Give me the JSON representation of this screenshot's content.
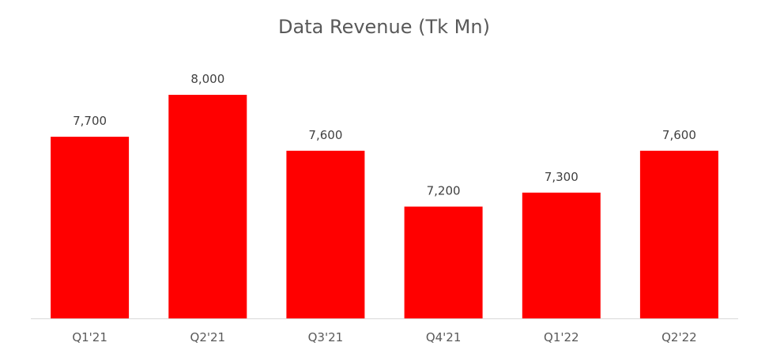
{
  "chart_data": {
    "type": "bar",
    "title": "Data Revenue (Tk Mn)",
    "categories": [
      "Q1'21",
      "Q2'21",
      "Q3'21",
      "Q4'21",
      "Q1'22",
      "Q2'22"
    ],
    "values": [
      7700,
      8000,
      7600,
      7200,
      7300,
      7600
    ],
    "value_labels": [
      "7,700",
      "8,000",
      "7,600",
      "7,200",
      "7,300",
      "7,600"
    ],
    "xlabel": "",
    "ylabel": "",
    "ylim": [
      6400,
      8000
    ],
    "grid": false,
    "legend": "none",
    "bar_color": "#FF0000",
    "axis_color": "#D9D9D9"
  }
}
